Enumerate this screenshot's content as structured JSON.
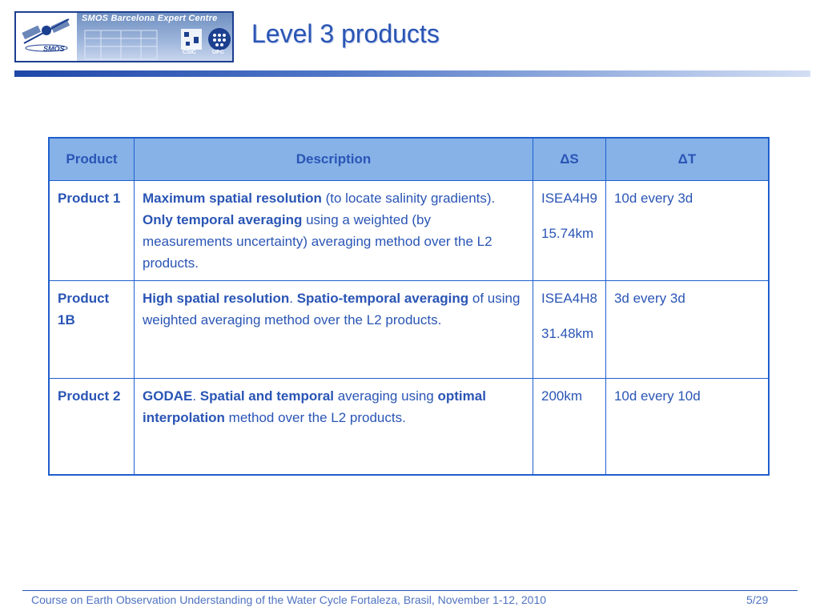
{
  "header": {
    "logo_title": "SMOS Barcelona Expert Centre",
    "logo_smos": "SMOS",
    "csic": "CSIC",
    "upc": "UPC",
    "title": "Level 3 products"
  },
  "table": {
    "headers": [
      "Product",
      "Description",
      "ΔS",
      "ΔT"
    ],
    "rows": [
      {
        "name": "Product 1",
        "desc": [
          "Maximum spatial resolution",
          " (to locate salinity gradients). ",
          "Only temporal averaging",
          " using a weighted (by measurements uncertainty) averaging method over the L2 products."
        ],
        "ds": [
          "ISEA4H9",
          "15.74km"
        ],
        "dt": "10d every 3d"
      },
      {
        "name": "Product 1B",
        "desc": [
          "High spatial resolution",
          ". ",
          "Spatio-temporal averaging",
          " of using weighted averaging method over the L2 products."
        ],
        "ds": [
          "ISEA4H8",
          "31.48km"
        ],
        "dt": "3d every 3d"
      },
      {
        "name": "Product 2",
        "desc": [
          "GODAE",
          ". ",
          "Spatial and temporal",
          " averaging using ",
          "optimal interpolation",
          " method over the L2 products."
        ],
        "ds": [
          "200km"
        ],
        "dt": "10d every 10d"
      }
    ]
  },
  "footer": {
    "text": "Course on Earth Observation Understanding of the Water Cycle Fortaleza, Brasil, November 1-12, 2010",
    "page": "5/29"
  }
}
